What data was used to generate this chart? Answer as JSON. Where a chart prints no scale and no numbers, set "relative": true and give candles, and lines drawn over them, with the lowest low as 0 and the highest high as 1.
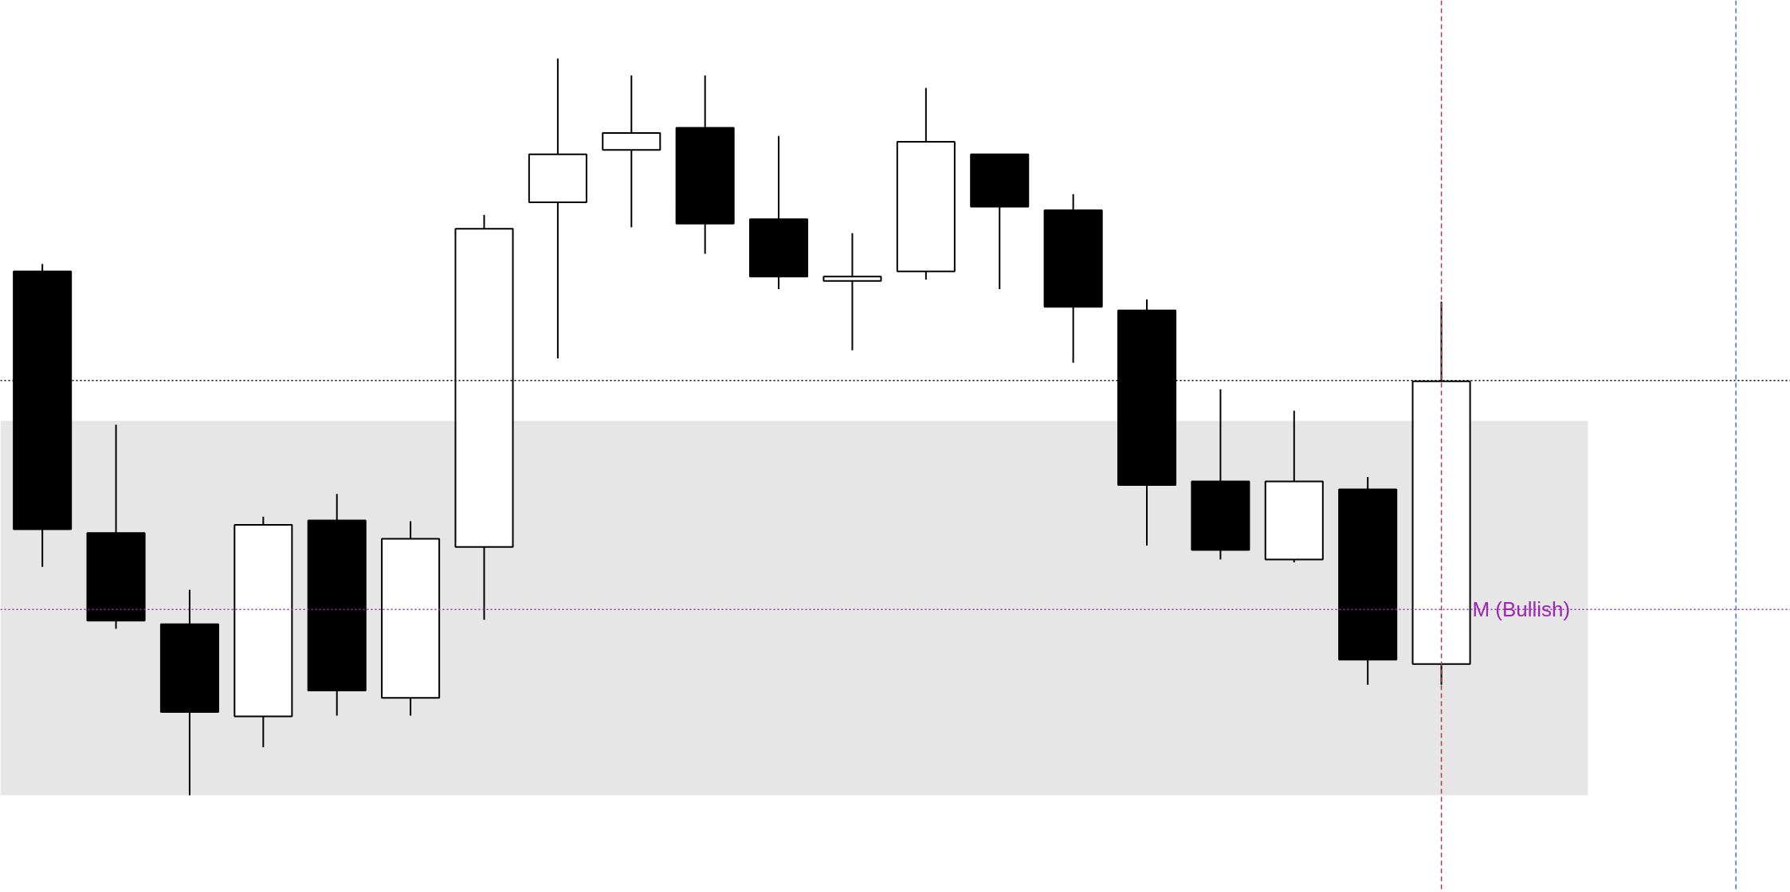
{
  "chart_data": {
    "type": "candlestick",
    "relative": true,
    "categories": [
      null,
      null,
      null,
      null,
      null,
      null,
      null,
      null,
      null,
      null,
      null,
      null,
      null,
      null,
      null,
      null,
      null,
      null,
      null,
      null
    ],
    "ohlc": [
      [
        0.711,
        0.721,
        0.31,
        0.361
      ],
      [
        0.356,
        0.503,
        0.226,
        0.237
      ],
      [
        0.232,
        0.279,
        0.0,
        0.113
      ],
      [
        0.107,
        0.378,
        0.065,
        0.367
      ],
      [
        0.373,
        0.409,
        0.108,
        0.142
      ],
      [
        0.132,
        0.372,
        0.108,
        0.348
      ],
      [
        0.337,
        0.788,
        0.238,
        0.769
      ],
      [
        0.805,
        1.0,
        0.593,
        0.87
      ],
      [
        0.876,
        0.977,
        0.771,
        0.899
      ],
      [
        0.906,
        0.977,
        0.735,
        0.776
      ],
      [
        0.782,
        0.895,
        0.687,
        0.704
      ],
      [
        0.698,
        0.763,
        0.604,
        0.704
      ],
      [
        0.711,
        0.96,
        0.7,
        0.887
      ],
      [
        0.87,
        0.87,
        0.687,
        0.799
      ],
      [
        0.794,
        0.816,
        0.587,
        0.663
      ],
      [
        0.658,
        0.673,
        0.339,
        0.421
      ],
      [
        0.426,
        0.551,
        0.32,
        0.333
      ],
      [
        0.32,
        0.522,
        0.316,
        0.426
      ],
      [
        0.415,
        0.432,
        0.15,
        0.184
      ],
      [
        0.178,
        0.67,
        0.15,
        0.562
      ]
    ],
    "bands": [
      {
        "axis": "y",
        "from": 0.0,
        "to": 0.508,
        "color": "#e6e6e6"
      }
    ],
    "ref_lines": [
      {
        "axis": "y",
        "value": 0.563,
        "color": "#000000",
        "line_style": "dotted"
      },
      {
        "axis": "y",
        "value": 0.252,
        "color": "#9c27b0",
        "line_style": "dotted",
        "label": "M (Bullish)"
      }
    ]
  }
}
